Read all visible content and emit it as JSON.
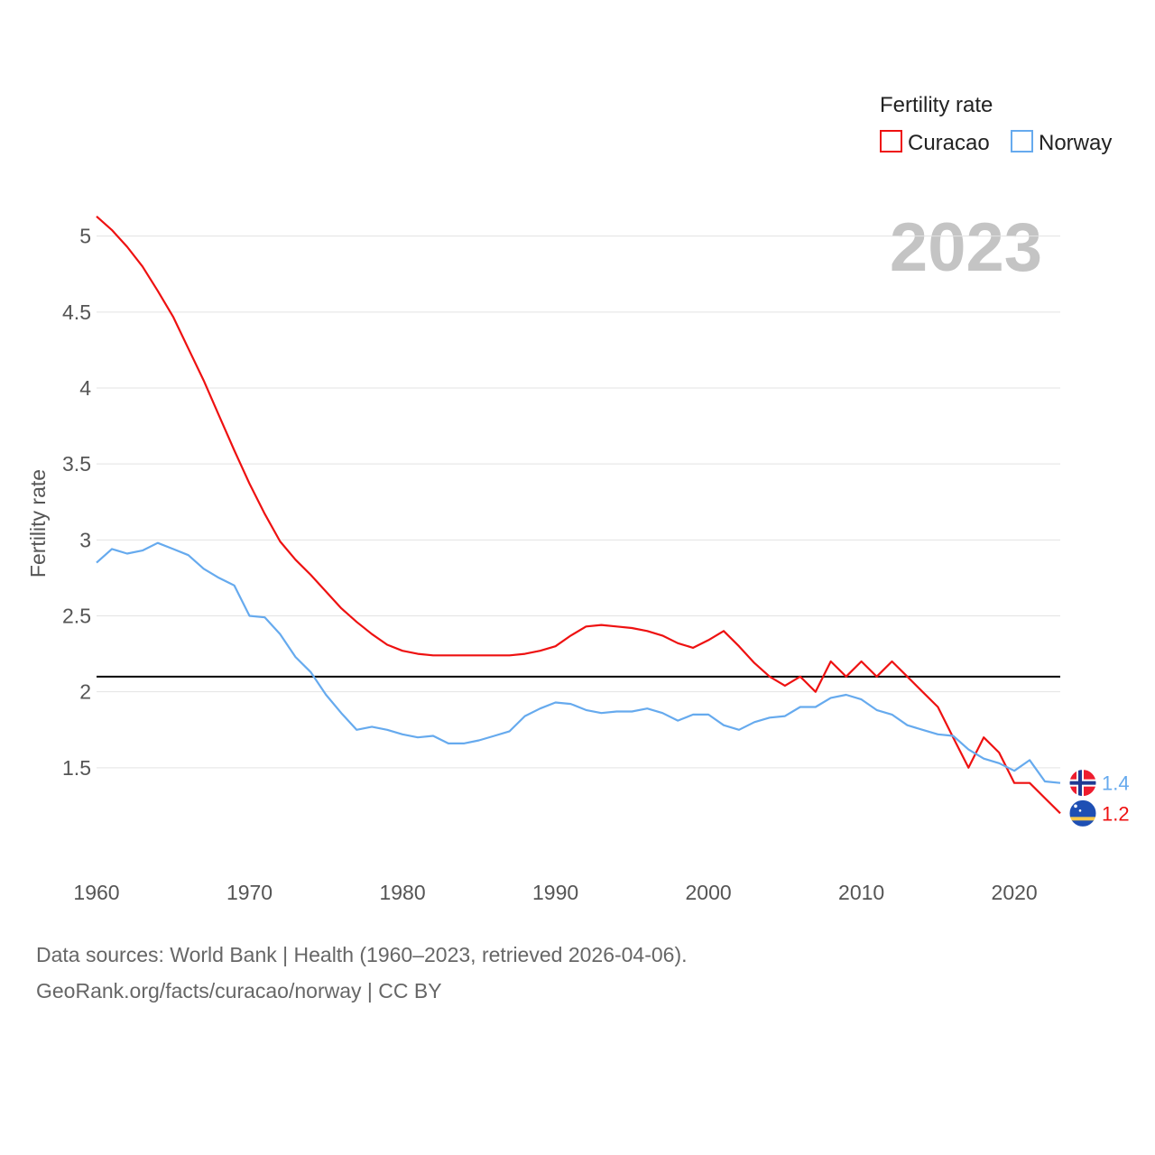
{
  "chart_data": {
    "type": "line",
    "title": "",
    "year_label": "2023",
    "ylabel": "Fertility rate",
    "xlabel": "",
    "xlim": [
      1960,
      2023
    ],
    "ylim": [
      1.0,
      5.2
    ],
    "x_ticks": [
      1960,
      1970,
      1980,
      1990,
      2000,
      2010,
      2020
    ],
    "y_ticks": [
      1.5,
      2,
      2.5,
      3,
      3.5,
      4,
      4.5,
      5
    ],
    "y_tick_labels": [
      "1.5",
      "2",
      "2.5",
      "3",
      "3.5",
      "4",
      "4.5",
      "5"
    ],
    "x_tick_labels": [
      "1960",
      "1970",
      "1980",
      "1990",
      "2000",
      "2010",
      "2020"
    ],
    "reference_line": {
      "value": 2.1,
      "color": "#000000"
    },
    "legend": {
      "title": "Fertility rate",
      "position": "top-right",
      "entries": [
        "Curacao",
        "Norway"
      ]
    },
    "x": [
      1960,
      1961,
      1962,
      1963,
      1964,
      1965,
      1966,
      1967,
      1968,
      1969,
      1970,
      1971,
      1972,
      1973,
      1974,
      1975,
      1976,
      1977,
      1978,
      1979,
      1980,
      1981,
      1982,
      1983,
      1984,
      1985,
      1986,
      1987,
      1988,
      1989,
      1990,
      1991,
      1992,
      1993,
      1994,
      1995,
      1996,
      1997,
      1998,
      1999,
      2000,
      2001,
      2002,
      2003,
      2004,
      2005,
      2006,
      2007,
      2008,
      2009,
      2010,
      2011,
      2012,
      2013,
      2014,
      2015,
      2016,
      2017,
      2018,
      2019,
      2020,
      2021,
      2022,
      2023
    ],
    "series": [
      {
        "name": "Curacao",
        "color": "#ee1111",
        "end_label": "1.2",
        "flag": "curacao-flag",
        "values": [
          5.13,
          5.04,
          4.93,
          4.8,
          4.64,
          4.47,
          4.26,
          4.05,
          3.82,
          3.59,
          3.37,
          3.17,
          2.99,
          2.87,
          2.77,
          2.66,
          2.55,
          2.46,
          2.38,
          2.31,
          2.27,
          2.25,
          2.24,
          2.24,
          2.24,
          2.24,
          2.24,
          2.24,
          2.25,
          2.27,
          2.3,
          2.37,
          2.43,
          2.44,
          2.43,
          2.42,
          2.4,
          2.37,
          2.32,
          2.29,
          2.34,
          2.4,
          2.3,
          2.19,
          2.1,
          2.04,
          2.1,
          2.0,
          2.2,
          2.1,
          2.2,
          2.1,
          2.2,
          2.1,
          2.0,
          1.9,
          1.7,
          1.5,
          1.7,
          1.6,
          1.4,
          1.4,
          1.3,
          1.2
        ]
      },
      {
        "name": "Norway",
        "color": "#66aaee",
        "end_label": "1.4",
        "flag": "norway-flag",
        "values": [
          2.85,
          2.94,
          2.91,
          2.93,
          2.98,
          2.94,
          2.9,
          2.81,
          2.75,
          2.7,
          2.5,
          2.49,
          2.38,
          2.23,
          2.13,
          1.98,
          1.86,
          1.75,
          1.77,
          1.75,
          1.72,
          1.7,
          1.71,
          1.66,
          1.66,
          1.68,
          1.71,
          1.74,
          1.84,
          1.89,
          1.93,
          1.92,
          1.88,
          1.86,
          1.87,
          1.87,
          1.89,
          1.86,
          1.81,
          1.85,
          1.85,
          1.78,
          1.75,
          1.8,
          1.83,
          1.84,
          1.9,
          1.9,
          1.96,
          1.98,
          1.95,
          1.88,
          1.85,
          1.78,
          1.75,
          1.72,
          1.71,
          1.62,
          1.56,
          1.53,
          1.48,
          1.55,
          1.41,
          1.4
        ]
      }
    ]
  },
  "footer": {
    "source_line": "Data sources: World Bank | Health (1960–2023, retrieved 2026-04-06).",
    "attribution_line": "GeoRank.org/facts/curacao/norway | CC BY"
  }
}
